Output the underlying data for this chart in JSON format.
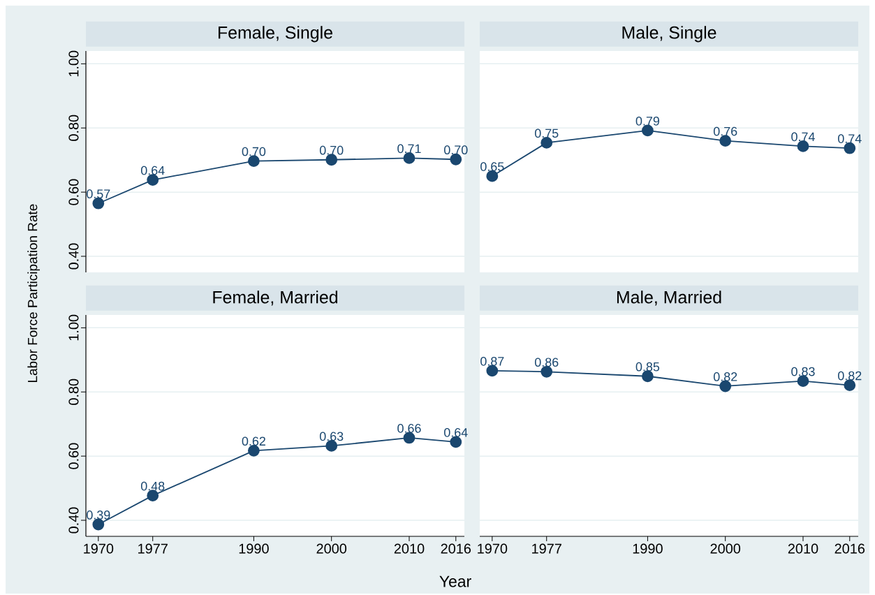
{
  "chart_data": [
    {
      "type": "line",
      "title": "Female, Single",
      "ylabel": "Labor Force Participation Rate",
      "x": [
        1970,
        1977,
        1990,
        2000,
        2010,
        2016
      ],
      "series": [
        {
          "color": "#1a476f",
          "values": [
            0.565,
            0.638,
            0.697,
            0.701,
            0.706,
            0.702
          ],
          "value_labels": [
            "0.57",
            "0.64",
            "0.70",
            "0.70",
            "0.71",
            "0.70"
          ]
        }
      ],
      "xlim": [
        1968.4,
        2017.1
      ],
      "ylim": [
        0.35,
        1.04
      ],
      "xticks": [
        1970,
        1977,
        1990,
        2000,
        2010,
        2016
      ],
      "yticks": [
        {
          "value": 0.4,
          "label": "0.40"
        },
        {
          "value": 0.6,
          "label": "0.60"
        },
        {
          "value": 0.8,
          "label": "0.80"
        },
        {
          "value": 1.0,
          "label": "1.00"
        }
      ],
      "tick_labels": "y",
      "grid": "y",
      "marker": "circle",
      "line_style": "solid"
    },
    {
      "type": "line",
      "title": "Male, Single",
      "x": [
        1970,
        1977,
        1990,
        2000,
        2010,
        2016
      ],
      "series": [
        {
          "color": "#1a476f",
          "values": [
            0.65,
            0.754,
            0.792,
            0.76,
            0.743,
            0.737
          ],
          "value_labels": [
            "0.65",
            "0.75",
            "0.79",
            "0.76",
            "0.74",
            "0.74"
          ]
        }
      ],
      "xlim": [
        1968.4,
        2017.1
      ],
      "ylim": [
        0.35,
        1.04
      ],
      "xticks": [
        1970,
        1977,
        1990,
        2000,
        2010,
        2016
      ],
      "yticks": [
        0.4,
        0.6,
        0.8,
        1.0
      ],
      "tick_labels": false,
      "grid": "y",
      "marker": "circle",
      "line_style": "solid"
    },
    {
      "type": "line",
      "title": "Female, Married",
      "xlabel": "Year",
      "x": [
        1970,
        1977,
        1990,
        2000,
        2010,
        2016
      ],
      "series": [
        {
          "color": "#1a476f",
          "values": [
            0.387,
            0.477,
            0.617,
            0.632,
            0.657,
            0.644
          ],
          "value_labels": [
            "0.39",
            "0.48",
            "0.62",
            "0.63",
            "0.66",
            "0.64"
          ]
        }
      ],
      "xlim": [
        1968.4,
        2017.1
      ],
      "ylim": [
        0.35,
        1.04
      ],
      "xticks": [
        1970,
        1977,
        1990,
        2000,
        2010,
        2016
      ],
      "yticks": [
        {
          "value": 0.4,
          "label": "0.40"
        },
        {
          "value": 0.6,
          "label": "0.60"
        },
        {
          "value": 0.8,
          "label": "0.80"
        },
        {
          "value": 1.0,
          "label": "1.00"
        }
      ],
      "grid": "y",
      "marker": "circle",
      "line_style": "solid"
    },
    {
      "type": "line",
      "title": "Male, Married",
      "x": [
        1970,
        1977,
        1990,
        2000,
        2010,
        2016
      ],
      "series": [
        {
          "color": "#1a476f",
          "values": [
            0.866,
            0.863,
            0.849,
            0.818,
            0.834,
            0.821
          ],
          "value_labels": [
            "0.87",
            "0.86",
            "0.85",
            "0.82",
            "0.83",
            "0.82"
          ]
        }
      ],
      "xlim": [
        1968.4,
        2017.1
      ],
      "ylim": [
        0.35,
        1.04
      ],
      "xticks": [
        1970,
        1977,
        1990,
        2000,
        2010,
        2016
      ],
      "yticks": [
        0.4,
        0.6,
        0.8,
        1.0
      ],
      "tick_labels": "x",
      "grid": "y",
      "marker": "circle",
      "line_style": "solid"
    }
  ]
}
